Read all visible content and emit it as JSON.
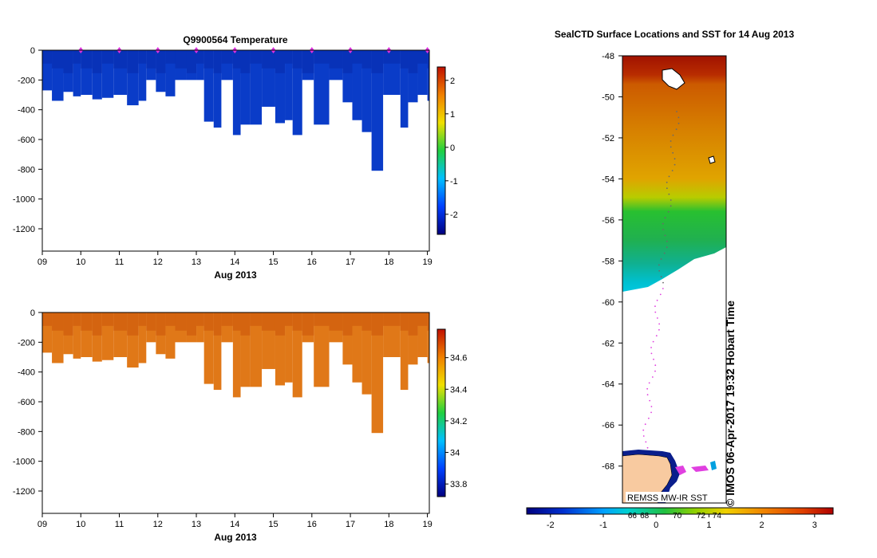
{
  "chart_data": [
    {
      "type": "heatmap",
      "title": "Q9900564  Temperature",
      "xlabel": "Aug 2013",
      "x_ticks": [
        "09",
        "10",
        "11",
        "12",
        "13",
        "14",
        "15",
        "16",
        "17",
        "18",
        "19"
      ],
      "xlim": [
        9.0,
        19.05
      ],
      "y_ticks": [
        "0",
        "-200",
        "-400",
        "-600",
        "-800",
        "-1000",
        "-1200"
      ],
      "y_tick_values": [
        0,
        -200,
        -400,
        -600,
        -800,
        -1000,
        -1200
      ],
      "ylim": [
        -1350,
        0
      ],
      "profile_markers_day": [
        10,
        11,
        12,
        13,
        14,
        15,
        16,
        17,
        18,
        19
      ],
      "profiles": [
        {
          "t": 9.0,
          "d": 270
        },
        {
          "t": 9.25,
          "d": 340
        },
        {
          "t": 9.55,
          "d": 280
        },
        {
          "t": 9.8,
          "d": 310
        },
        {
          "t": 10.0,
          "d": 300
        },
        {
          "t": 10.3,
          "d": 330
        },
        {
          "t": 10.55,
          "d": 320
        },
        {
          "t": 10.85,
          "d": 300
        },
        {
          "t": 11.2,
          "d": 370
        },
        {
          "t": 11.5,
          "d": 340
        },
        {
          "t": 11.7,
          "d": 200
        },
        {
          "t": 11.95,
          "d": 280
        },
        {
          "t": 12.2,
          "d": 310
        },
        {
          "t": 12.45,
          "d": 200
        },
        {
          "t": 12.75,
          "d": 200
        },
        {
          "t": 13.0,
          "d": 200
        },
        {
          "t": 13.2,
          "d": 480
        },
        {
          "t": 13.45,
          "d": 520
        },
        {
          "t": 13.65,
          "d": 200
        },
        {
          "t": 13.95,
          "d": 570
        },
        {
          "t": 14.15,
          "d": 500
        },
        {
          "t": 14.4,
          "d": 500
        },
        {
          "t": 14.7,
          "d": 380
        },
        {
          "t": 15.05,
          "d": 490
        },
        {
          "t": 15.3,
          "d": 470
        },
        {
          "t": 15.5,
          "d": 570
        },
        {
          "t": 15.75,
          "d": 200
        },
        {
          "t": 16.05,
          "d": 500
        },
        {
          "t": 16.45,
          "d": 200
        },
        {
          "t": 16.8,
          "d": 350
        },
        {
          "t": 17.05,
          "d": 470
        },
        {
          "t": 17.3,
          "d": 550
        },
        {
          "t": 17.55,
          "d": 810
        },
        {
          "t": 17.85,
          "d": 300
        },
        {
          "t": 18.3,
          "d": 520
        },
        {
          "t": 18.5,
          "d": 350
        },
        {
          "t": 18.75,
          "d": 300
        },
        {
          "t": 19.0,
          "d": 340
        }
      ],
      "colorbar": {
        "ticks": [
          "2",
          "1",
          "0",
          "-1",
          "-2"
        ],
        "tick_values": [
          2,
          1,
          0,
          -1,
          -2
        ],
        "range": [
          -2.6,
          2.4
        ]
      }
    },
    {
      "type": "heatmap",
      "title": "",
      "xlabel": "Aug 2013",
      "x_ticks": [
        "09",
        "10",
        "11",
        "12",
        "13",
        "14",
        "15",
        "16",
        "17",
        "18",
        "19"
      ],
      "xlim": [
        9.0,
        19.05
      ],
      "y_ticks": [
        "0",
        "-200",
        "-400",
        "-600",
        "-800",
        "-1000",
        "-1200"
      ],
      "y_tick_values": [
        0,
        -200,
        -400,
        -600,
        -800,
        -1000,
        -1200
      ],
      "ylim": [
        -1350,
        0
      ],
      "colorbar": {
        "ticks": [
          "34.6",
          "34.4",
          "34.2",
          "34",
          "33.8"
        ],
        "tick_values": [
          34.6,
          34.4,
          34.2,
          34.0,
          33.8
        ],
        "range": [
          33.72,
          34.78
        ]
      }
    },
    {
      "type": "heatmap",
      "title": "SealCTD Surface Locations and SST for 14 Aug 2013",
      "y_ticks": [
        "-48",
        "-50",
        "-52",
        "-54",
        "-56",
        "-58",
        "-60",
        "-62",
        "-64",
        "-66",
        "-68"
      ],
      "y_tick_values": [
        -48,
        -50,
        -52,
        -54,
        -56,
        -58,
        -60,
        -62,
        -64,
        -66,
        -68
      ],
      "ylim": [
        -69.8,
        -48
      ],
      "sst_by_latitude": [
        {
          "lat": -48.5,
          "sst": 3.0
        },
        {
          "lat": -50,
          "sst": 2.3
        },
        {
          "lat": -52,
          "sst": 1.9
        },
        {
          "lat": -54,
          "sst": 1.6
        },
        {
          "lat": -55.3,
          "sst": 0.9
        },
        {
          "lat": -56,
          "sst": 0.0
        },
        {
          "lat": -58,
          "sst": -0.3
        },
        {
          "lat": -59.5,
          "sst": -0.9
        }
      ],
      "colorbar": {
        "ticks": [
          "-2",
          "-1",
          "0",
          "1",
          "2",
          "3"
        ],
        "tick_values": [
          -2,
          -1,
          0,
          1,
          2,
          3
        ],
        "range": [
          -2.45,
          3.35
        ],
        "extra_labels": [
          "66",
          "68",
          "70",
          "72",
          "74"
        ],
        "extra_values": [
          -0.45,
          -0.22,
          0.4,
          0.85,
          1.15
        ]
      },
      "credit": "REMSS MW-IR SST",
      "stamp": "© IMOS 06-Apr-2017 19:32 Hobart Time"
    }
  ]
}
